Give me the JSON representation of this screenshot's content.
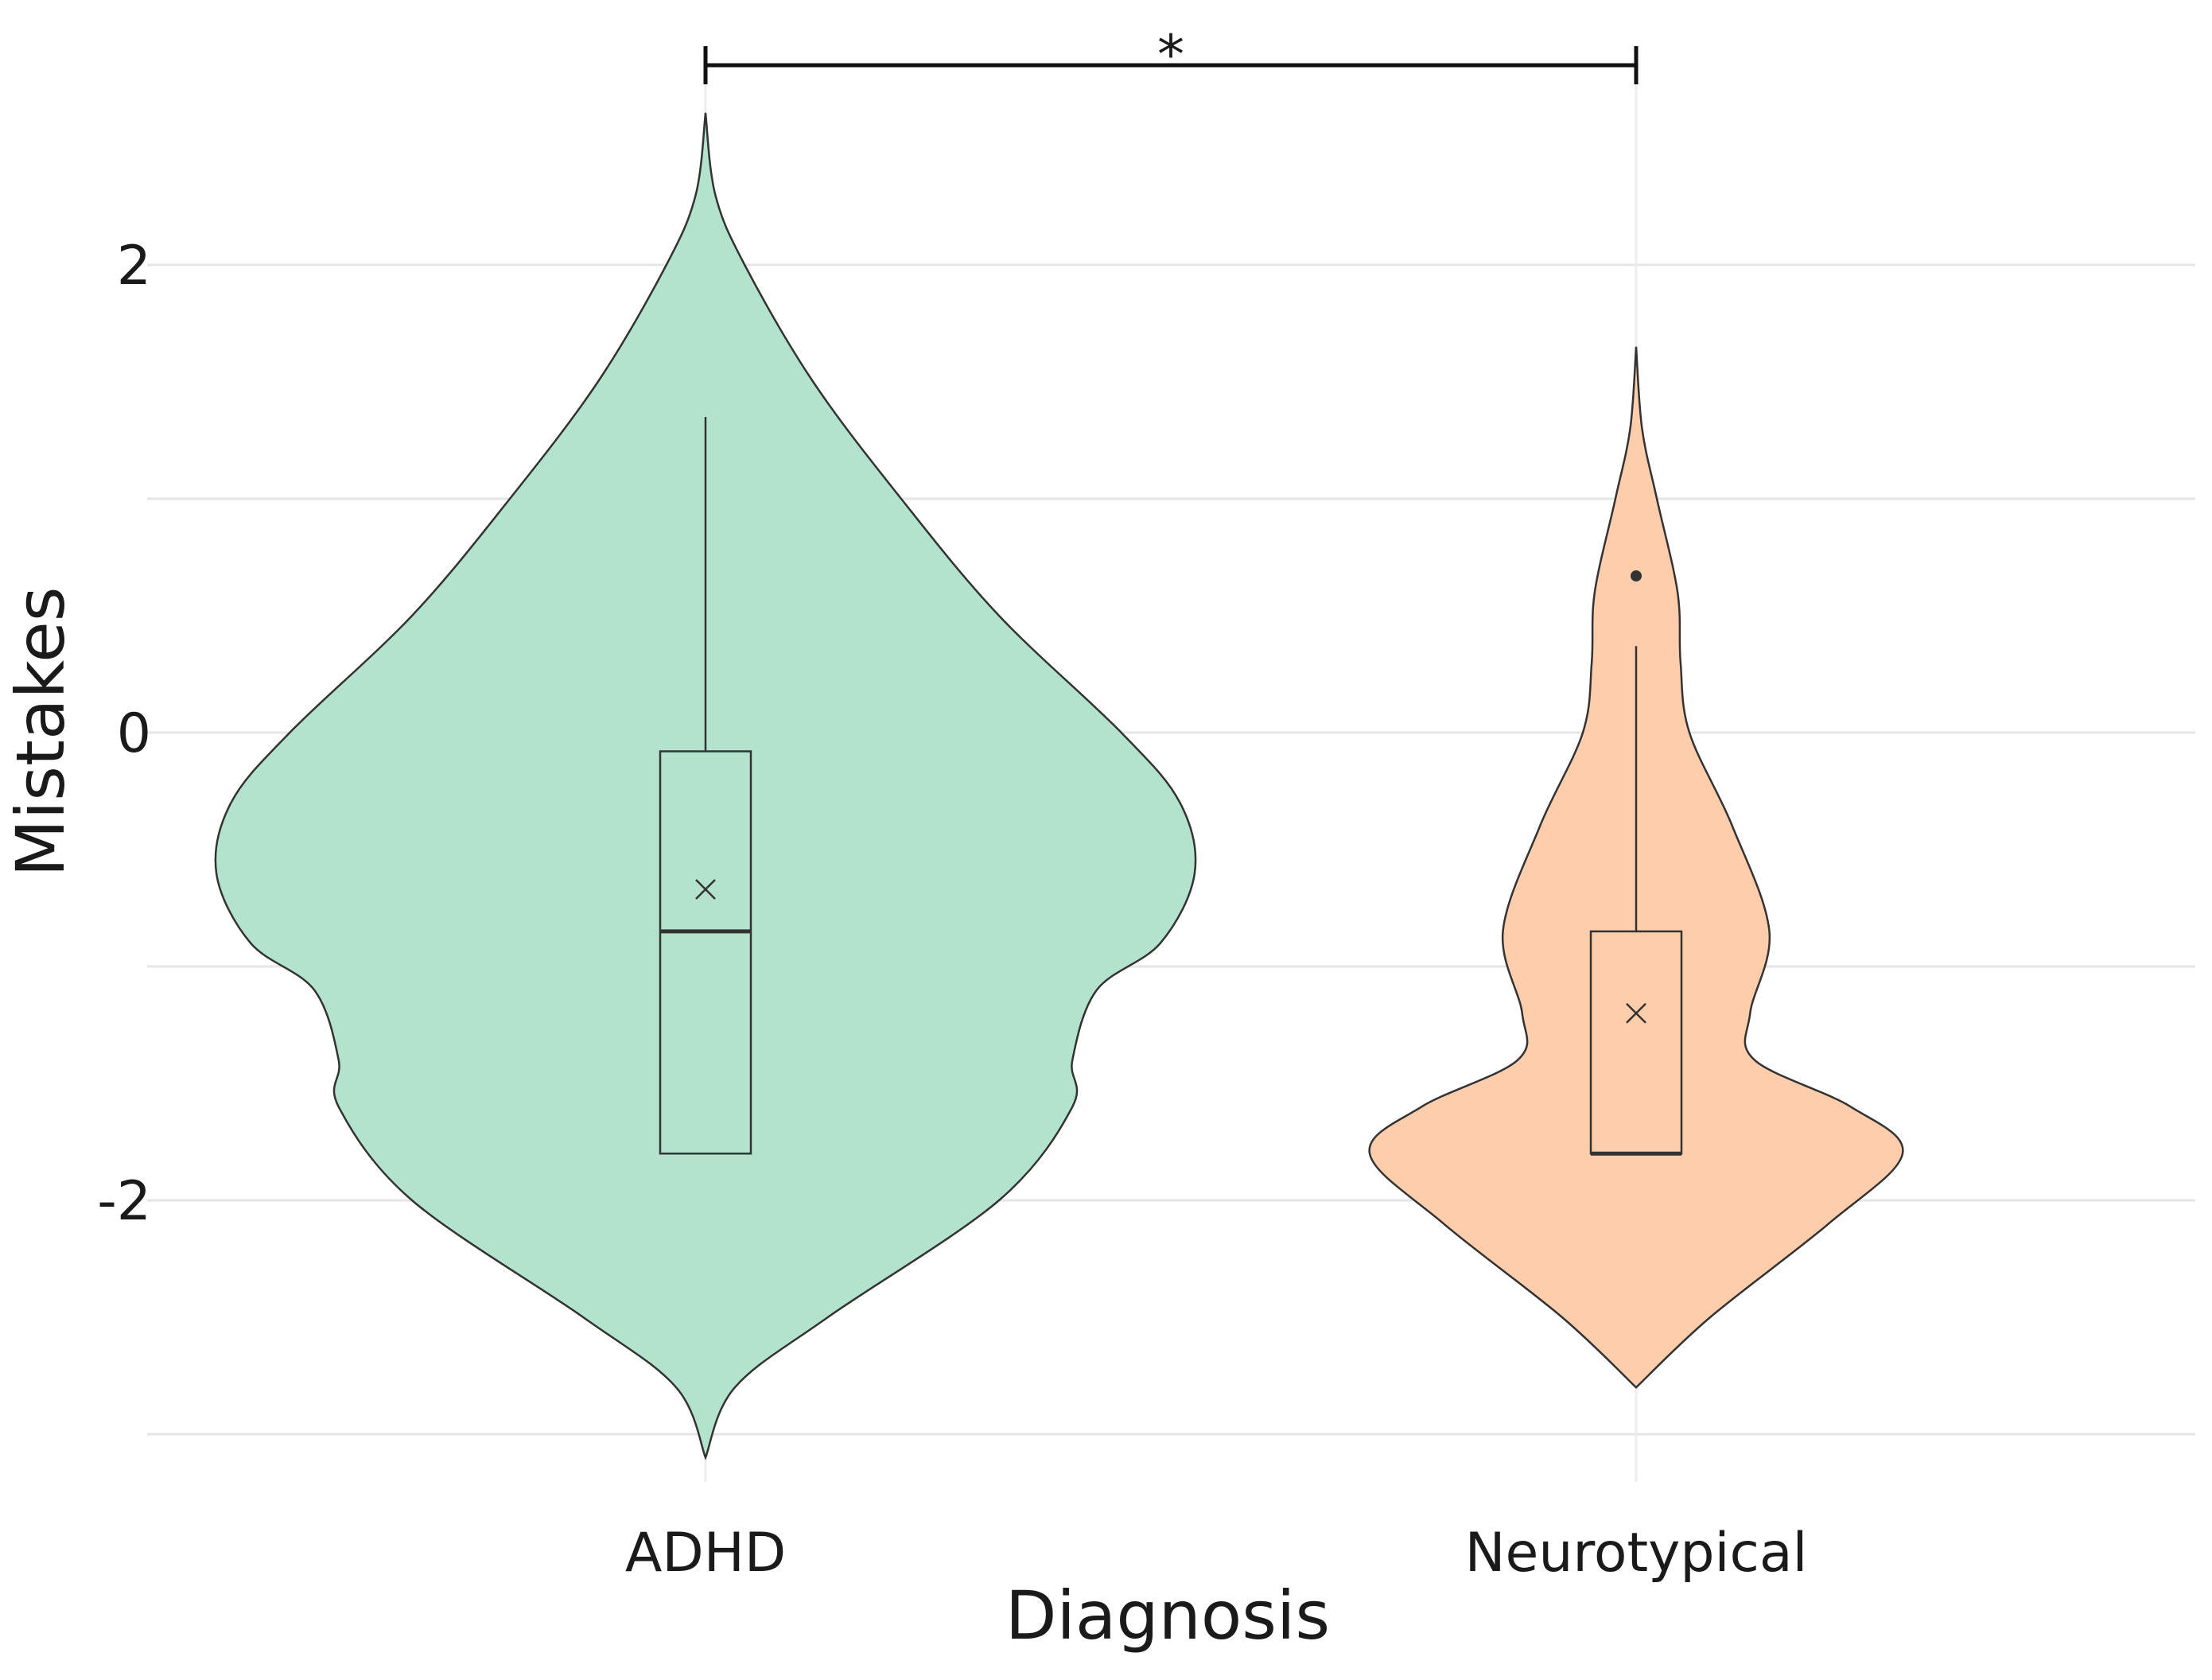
{
  "chart_data": {
    "type": "violin",
    "xlabel": "Diagnosis",
    "ylabel": "Mistakes",
    "categories": [
      "ADHD",
      "Neurotypical"
    ],
    "ylim": [
      -3.05,
      2.65
    ],
    "yticks": [
      2,
      0,
      -2
    ],
    "ytick_labels": [
      "2",
      "0",
      "-2"
    ],
    "minor_gridlines": [
      1,
      -1,
      -3
    ],
    "grid": true,
    "significance": {
      "label": "*",
      "between": [
        "ADHD",
        "Neurotypical"
      ]
    },
    "colors": {
      "ADHD": "#b3e2cd",
      "Neurotypical": "#fdcdac",
      "outline": "#333333"
    },
    "groups": [
      {
        "name": "ADHD",
        "box": {
          "q1": -1.8,
          "median": -0.85,
          "q3": -0.08,
          "whisker_low": -1.8,
          "whisker_high": 1.35
        },
        "mean": -0.67,
        "outliers": [],
        "violin_range": [
          -3.1,
          2.65
        ],
        "density_profile": [
          [
            2.65,
            0.0
          ],
          [
            2.3,
            0.02
          ],
          [
            2.0,
            0.08
          ],
          [
            1.5,
            0.22
          ],
          [
            1.0,
            0.4
          ],
          [
            0.5,
            0.6
          ],
          [
            0.0,
            0.85
          ],
          [
            -0.3,
            0.97
          ],
          [
            -0.6,
            1.0
          ],
          [
            -0.9,
            0.93
          ],
          [
            -1.1,
            0.8
          ],
          [
            -1.4,
            0.75
          ],
          [
            -1.6,
            0.75
          ],
          [
            -2.0,
            0.6
          ],
          [
            -2.5,
            0.25
          ],
          [
            -2.8,
            0.06
          ],
          [
            -3.1,
            0.0
          ]
        ]
      },
      {
        "name": "Neurotypical",
        "box": {
          "q1": -1.8,
          "median": -1.8,
          "q3": -0.85,
          "whisker_low": -1.8,
          "whisker_high": 0.37
        },
        "mean": -1.2,
        "outliers": [
          0.67
        ],
        "violin_range": [
          -2.8,
          1.65
        ],
        "density_profile": [
          [
            1.65,
            0.0
          ],
          [
            1.3,
            0.04
          ],
          [
            1.0,
            0.14
          ],
          [
            0.6,
            0.28
          ],
          [
            0.3,
            0.3
          ],
          [
            0.0,
            0.36
          ],
          [
            -0.4,
            0.65
          ],
          [
            -0.85,
            0.9
          ],
          [
            -1.2,
            0.77
          ],
          [
            -1.4,
            0.8
          ],
          [
            -1.6,
            1.45
          ],
          [
            -1.8,
            1.8
          ],
          [
            -2.1,
            1.3
          ],
          [
            -2.5,
            0.5
          ],
          [
            -2.8,
            0.0
          ]
        ]
      }
    ]
  }
}
